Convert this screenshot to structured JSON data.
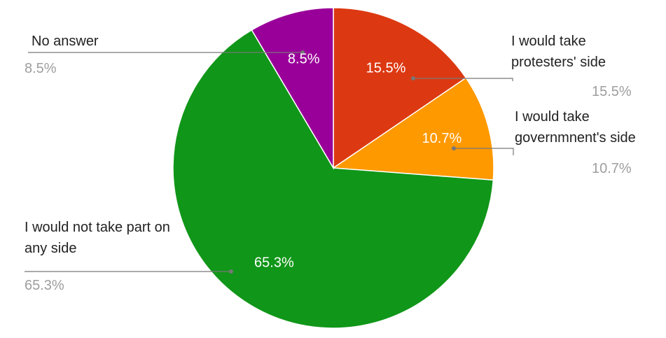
{
  "chart_data": {
    "type": "pie",
    "categories": [
      "I would take protesters' side",
      "I would take governmnent's side",
      "I would not take part on any side",
      "No answer"
    ],
    "values": [
      15.5,
      10.7,
      65.3,
      8.5
    ],
    "value_labels": [
      "15.5%",
      "10.7%",
      "65.3%",
      "8.5%"
    ],
    "colors": [
      "#dc3912",
      "#ff9900",
      "#109618",
      "#990099"
    ]
  }
}
